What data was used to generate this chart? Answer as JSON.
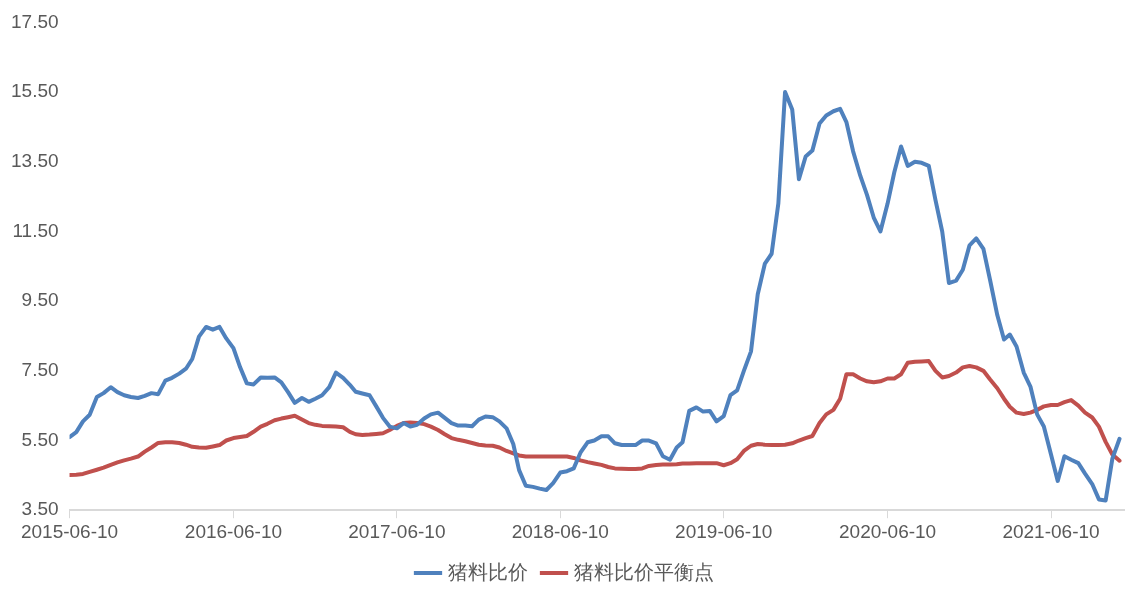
{
  "chart_data": {
    "type": "line",
    "legend": "bottom",
    "grid": false,
    "marker": "none",
    "line_style": "solid",
    "ylim": [
      3.5,
      17.5
    ],
    "yticks": [
      {
        "value": 3.5,
        "label": "3.50"
      },
      {
        "value": 5.5,
        "label": "5.50"
      },
      {
        "value": 7.5,
        "label": "7.50"
      },
      {
        "value": 9.5,
        "label": "9.50"
      },
      {
        "value": 11.5,
        "label": "11.50"
      },
      {
        "value": 13.5,
        "label": "13.50"
      },
      {
        "value": 15.5,
        "label": "15.50"
      },
      {
        "value": 17.5,
        "label": "17.50"
      }
    ],
    "xlim": [
      "2015-06-10",
      "2021-11-20"
    ],
    "xticks": [
      "2015-06-10",
      "2016-06-10",
      "2017-06-10",
      "2018-06-10",
      "2019-06-10",
      "2020-06-10",
      "2021-06-10"
    ],
    "x": [
      "2015-06-10",
      "2015-06-25",
      "2015-07-10",
      "2015-07-25",
      "2015-08-10",
      "2015-08-25",
      "2015-09-10",
      "2015-09-25",
      "2015-10-10",
      "2015-10-25",
      "2015-11-10",
      "2015-11-25",
      "2015-12-10",
      "2015-12-25",
      "2016-01-10",
      "2016-01-25",
      "2016-02-10",
      "2016-02-25",
      "2016-03-10",
      "2016-03-25",
      "2016-04-10",
      "2016-04-25",
      "2016-05-10",
      "2016-05-25",
      "2016-06-10",
      "2016-06-25",
      "2016-07-10",
      "2016-07-25",
      "2016-08-10",
      "2016-08-25",
      "2016-09-10",
      "2016-09-25",
      "2016-10-10",
      "2016-10-25",
      "2016-11-10",
      "2016-11-25",
      "2016-12-10",
      "2016-12-25",
      "2017-01-10",
      "2017-01-25",
      "2017-02-10",
      "2017-02-25",
      "2017-03-10",
      "2017-03-25",
      "2017-04-10",
      "2017-04-25",
      "2017-05-10",
      "2017-05-25",
      "2017-06-10",
      "2017-06-25",
      "2017-07-10",
      "2017-07-25",
      "2017-08-10",
      "2017-08-25",
      "2017-09-10",
      "2017-09-25",
      "2017-10-10",
      "2017-10-25",
      "2017-11-10",
      "2017-11-25",
      "2017-12-10",
      "2017-12-25",
      "2018-01-10",
      "2018-01-25",
      "2018-02-10",
      "2018-02-25",
      "2018-03-10",
      "2018-03-25",
      "2018-04-10",
      "2018-04-25",
      "2018-05-10",
      "2018-05-25",
      "2018-06-10",
      "2018-06-25",
      "2018-07-10",
      "2018-07-25",
      "2018-08-10",
      "2018-08-25",
      "2018-09-10",
      "2018-09-25",
      "2018-10-10",
      "2018-10-25",
      "2018-11-10",
      "2018-11-25",
      "2018-12-10",
      "2018-12-25",
      "2019-01-10",
      "2019-01-25",
      "2019-02-10",
      "2019-02-25",
      "2019-03-10",
      "2019-03-25",
      "2019-04-10",
      "2019-04-25",
      "2019-05-10",
      "2019-05-25",
      "2019-06-10",
      "2019-06-25",
      "2019-07-10",
      "2019-07-25",
      "2019-08-10",
      "2019-08-25",
      "2019-09-10",
      "2019-09-25",
      "2019-10-10",
      "2019-10-25",
      "2019-11-10",
      "2019-11-25",
      "2019-12-10",
      "2019-12-25",
      "2020-01-10",
      "2020-01-25",
      "2020-02-10",
      "2020-02-25",
      "2020-03-10",
      "2020-03-25",
      "2020-04-10",
      "2020-04-25",
      "2020-05-10",
      "2020-05-25",
      "2020-06-10",
      "2020-06-25",
      "2020-07-10",
      "2020-07-25",
      "2020-08-10",
      "2020-08-25",
      "2020-09-10",
      "2020-09-25",
      "2020-10-10",
      "2020-10-25",
      "2020-11-10",
      "2020-11-25",
      "2020-12-10",
      "2020-12-25",
      "2021-01-10",
      "2021-01-25",
      "2021-02-10",
      "2021-02-25",
      "2021-03-10",
      "2021-03-25",
      "2021-04-10",
      "2021-04-25",
      "2021-05-10",
      "2021-05-25",
      "2021-06-10",
      "2021-06-25",
      "2021-07-10",
      "2021-07-25",
      "2021-08-10",
      "2021-08-25",
      "2021-09-10",
      "2021-09-25",
      "2021-10-10",
      "2021-10-25",
      "2021-11-10"
    ],
    "series": [
      {
        "name": "猪料比价",
        "color": "#4f81bd",
        "values": [
          5.6,
          5.74,
          6.05,
          6.24,
          6.75,
          6.86,
          7.03,
          6.89,
          6.8,
          6.75,
          6.72,
          6.78,
          6.86,
          6.83,
          7.22,
          7.3,
          7.42,
          7.56,
          7.84,
          8.48,
          8.76,
          8.68,
          8.76,
          8.43,
          8.15,
          7.6,
          7.14,
          7.11,
          7.31,
          7.3,
          7.31,
          7.17,
          6.89,
          6.58,
          6.72,
          6.61,
          6.7,
          6.8,
          7.03,
          7.45,
          7.3,
          7.1,
          6.9,
          6.85,
          6.8,
          6.48,
          6.15,
          5.9,
          5.85,
          6.0,
          5.9,
          5.95,
          6.13,
          6.25,
          6.3,
          6.15,
          6.0,
          5.93,
          5.93,
          5.91,
          6.1,
          6.19,
          6.17,
          6.05,
          5.85,
          5.4,
          4.65,
          4.2,
          4.17,
          4.12,
          4.08,
          4.28,
          4.58,
          4.62,
          4.7,
          5.15,
          5.45,
          5.5,
          5.62,
          5.62,
          5.42,
          5.37,
          5.37,
          5.37,
          5.5,
          5.5,
          5.42,
          5.05,
          4.95,
          5.3,
          5.45,
          6.35,
          6.45,
          6.33,
          6.35,
          6.05,
          6.2,
          6.8,
          6.94,
          7.5,
          8.06,
          9.7,
          10.58,
          10.86,
          12.3,
          15.5,
          15.0,
          13.0,
          13.65,
          13.82,
          14.6,
          14.83,
          14.95,
          15.02,
          14.64,
          13.8,
          13.1,
          12.55,
          11.9,
          11.5,
          12.3,
          13.2,
          13.94,
          13.38,
          13.5,
          13.47,
          13.38,
          12.4,
          11.5,
          10.02,
          10.09,
          10.4,
          11.1,
          11.3,
          11.0,
          10.1,
          9.1,
          8.4,
          8.54,
          8.2,
          7.45,
          7.05,
          6.25,
          5.9,
          5.1,
          4.34,
          5.05,
          4.95,
          4.85,
          4.55,
          4.25,
          3.81,
          3.78,
          4.98,
          5.55
        ]
      },
      {
        "name": "猪料比价平衡点",
        "color": "#c0504d",
        "values": [
          4.51,
          4.52,
          4.54,
          4.6,
          4.66,
          4.72,
          4.8,
          4.87,
          4.93,
          4.98,
          5.04,
          5.18,
          5.3,
          5.43,
          5.45,
          5.45,
          5.43,
          5.38,
          5.32,
          5.3,
          5.29,
          5.33,
          5.37,
          5.5,
          5.57,
          5.6,
          5.63,
          5.75,
          5.9,
          5.98,
          6.08,
          6.13,
          6.17,
          6.21,
          6.1,
          6.0,
          5.95,
          5.92,
          5.91,
          5.9,
          5.88,
          5.75,
          5.68,
          5.66,
          5.67,
          5.69,
          5.71,
          5.8,
          5.92,
          6.0,
          6.02,
          6.0,
          5.97,
          5.9,
          5.8,
          5.68,
          5.57,
          5.52,
          5.48,
          5.43,
          5.38,
          5.36,
          5.35,
          5.3,
          5.2,
          5.13,
          5.07,
          5.04,
          5.04,
          5.04,
          5.04,
          5.04,
          5.04,
          5.04,
          5.0,
          4.93,
          4.88,
          4.84,
          4.8,
          4.74,
          4.7,
          4.69,
          4.68,
          4.68,
          4.7,
          4.77,
          4.8,
          4.81,
          4.81,
          4.82,
          4.84,
          4.84,
          4.85,
          4.85,
          4.85,
          4.85,
          4.79,
          4.85,
          4.96,
          5.2,
          5.35,
          5.4,
          5.38,
          5.37,
          5.37,
          5.38,
          5.42,
          5.5,
          5.57,
          5.63,
          6.0,
          6.25,
          6.38,
          6.7,
          7.4,
          7.4,
          7.28,
          7.2,
          7.17,
          7.2,
          7.28,
          7.28,
          7.4,
          7.73,
          7.76,
          7.77,
          7.78,
          7.5,
          7.31,
          7.35,
          7.45,
          7.6,
          7.64,
          7.6,
          7.5,
          7.25,
          7.0,
          6.7,
          6.47,
          6.3,
          6.26,
          6.3,
          6.38,
          6.48,
          6.52,
          6.52,
          6.6,
          6.66,
          6.5,
          6.3,
          6.16,
          5.9,
          5.46,
          5.1,
          4.92
        ]
      }
    ]
  }
}
